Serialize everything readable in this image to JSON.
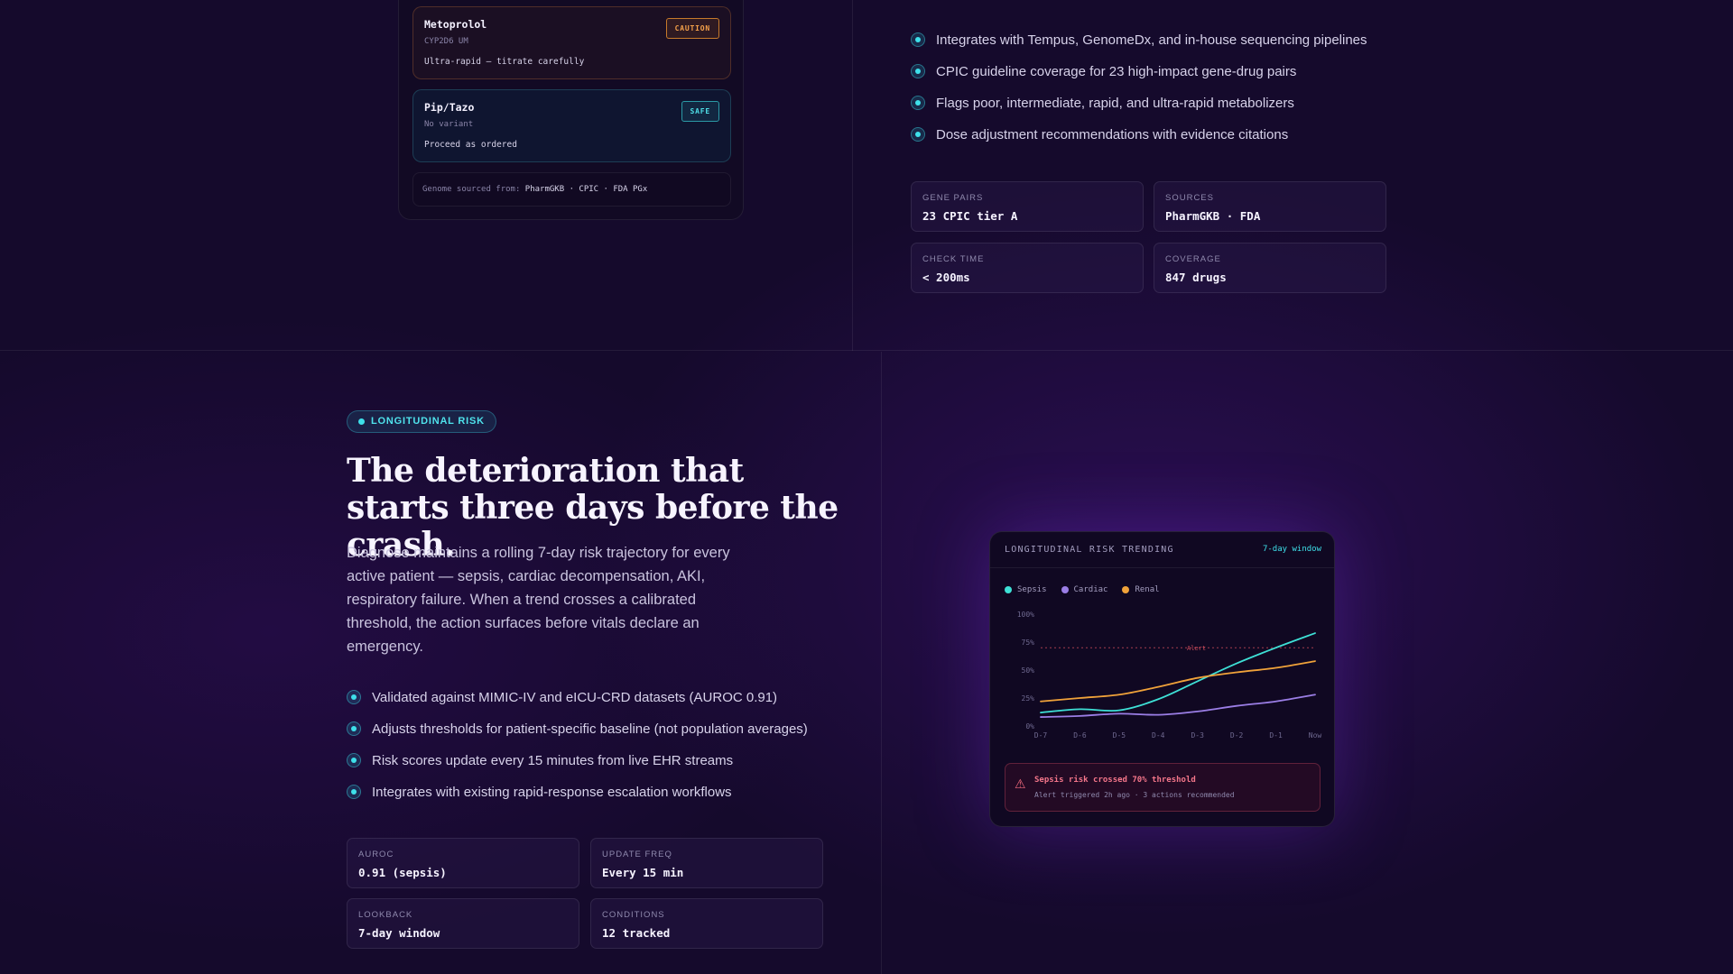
{
  "top": {
    "drugs": [
      {
        "name": "Metoprolol",
        "gene": "CYP2D6 UM",
        "note": "Ultra-rapid — titrate carefully",
        "badge": "CAUTION"
      },
      {
        "name": "Pip/Tazo",
        "gene": "No variant",
        "note": "Proceed as ordered",
        "badge": "SAFE"
      }
    ],
    "genome_source_label": "Genome sourced from:",
    "genome_source_value": "PharmGKB · CPIC · FDA PGx",
    "bullets": [
      "Integrates with Tempus, GenomeDx, and in-house sequencing pipelines",
      "CPIC guideline coverage for 23 high-impact gene-drug pairs",
      "Flags poor, intermediate, rapid, and ultra-rapid metabolizers",
      "Dose adjustment recommendations with evidence citations"
    ],
    "stats": [
      {
        "label": "GENE PAIRS",
        "value": "23 CPIC tier A"
      },
      {
        "label": "SOURCES",
        "value": "PharmGKB · FDA"
      },
      {
        "label": "CHECK TIME",
        "value": "< 200ms"
      },
      {
        "label": "COVERAGE",
        "value": "847 drugs"
      }
    ]
  },
  "bottom": {
    "pill": "LONGITUDINAL RISK",
    "headline": "The deterioration that starts three days before the crash.",
    "description": "Diagnose maintains a rolling 7-day risk trajectory for every active patient — sepsis, cardiac decompensation, AKI, respiratory failure. When a trend crosses a calibrated threshold, the action surfaces before vitals declare an emergency.",
    "bullets": [
      "Validated against MIMIC-IV and eICU-CRD datasets (AUROC 0.91)",
      "Adjusts thresholds for patient-specific baseline (not population averages)",
      "Risk scores update every 15 minutes from live EHR streams",
      "Integrates with existing rapid-response escalation workflows"
    ],
    "stats": [
      {
        "label": "AUROC",
        "value": "0.91 (sepsis)"
      },
      {
        "label": "UPDATE FREQ",
        "value": "Every 15 min"
      },
      {
        "label": "LOOKBACK",
        "value": "7-day window"
      },
      {
        "label": "CONDITIONS",
        "value": "12 tracked"
      }
    ]
  },
  "chart_panel": {
    "title": "LONGITUDINAL RISK TRENDING",
    "window": "7-day window",
    "alert_icon": "warning-icon",
    "alert_title": "Sepsis risk crossed 70% threshold",
    "alert_sub": "Alert triggered 2h ago · 3 actions recommended"
  },
  "colors": {
    "sepsis": "#3ee0d6",
    "cardiac": "#9b7ee6",
    "renal": "#f0a23a",
    "threshold": "#c94a5a",
    "accent": "#3ee0ea"
  },
  "chart_data": {
    "type": "line",
    "x": [
      "D-7",
      "D-6",
      "D-5",
      "D-4",
      "D-3",
      "D-2",
      "D-1",
      "Now"
    ],
    "y_ticks": [
      "0%",
      "25%",
      "50%",
      "75%",
      "100%"
    ],
    "ylim": [
      0,
      100
    ],
    "threshold": {
      "value": 70,
      "label": "Alert"
    },
    "series": [
      {
        "name": "Sepsis",
        "color": "#3ee0d6",
        "values": [
          12,
          15,
          14,
          24,
          40,
          56,
          70,
          83
        ]
      },
      {
        "name": "Cardiac",
        "color": "#9b7ee6",
        "values": [
          8,
          9,
          11,
          10,
          13,
          18,
          22,
          28
        ]
      },
      {
        "name": "Renal",
        "color": "#f0a23a",
        "values": [
          22,
          25,
          28,
          35,
          43,
          48,
          52,
          58
        ]
      }
    ]
  }
}
